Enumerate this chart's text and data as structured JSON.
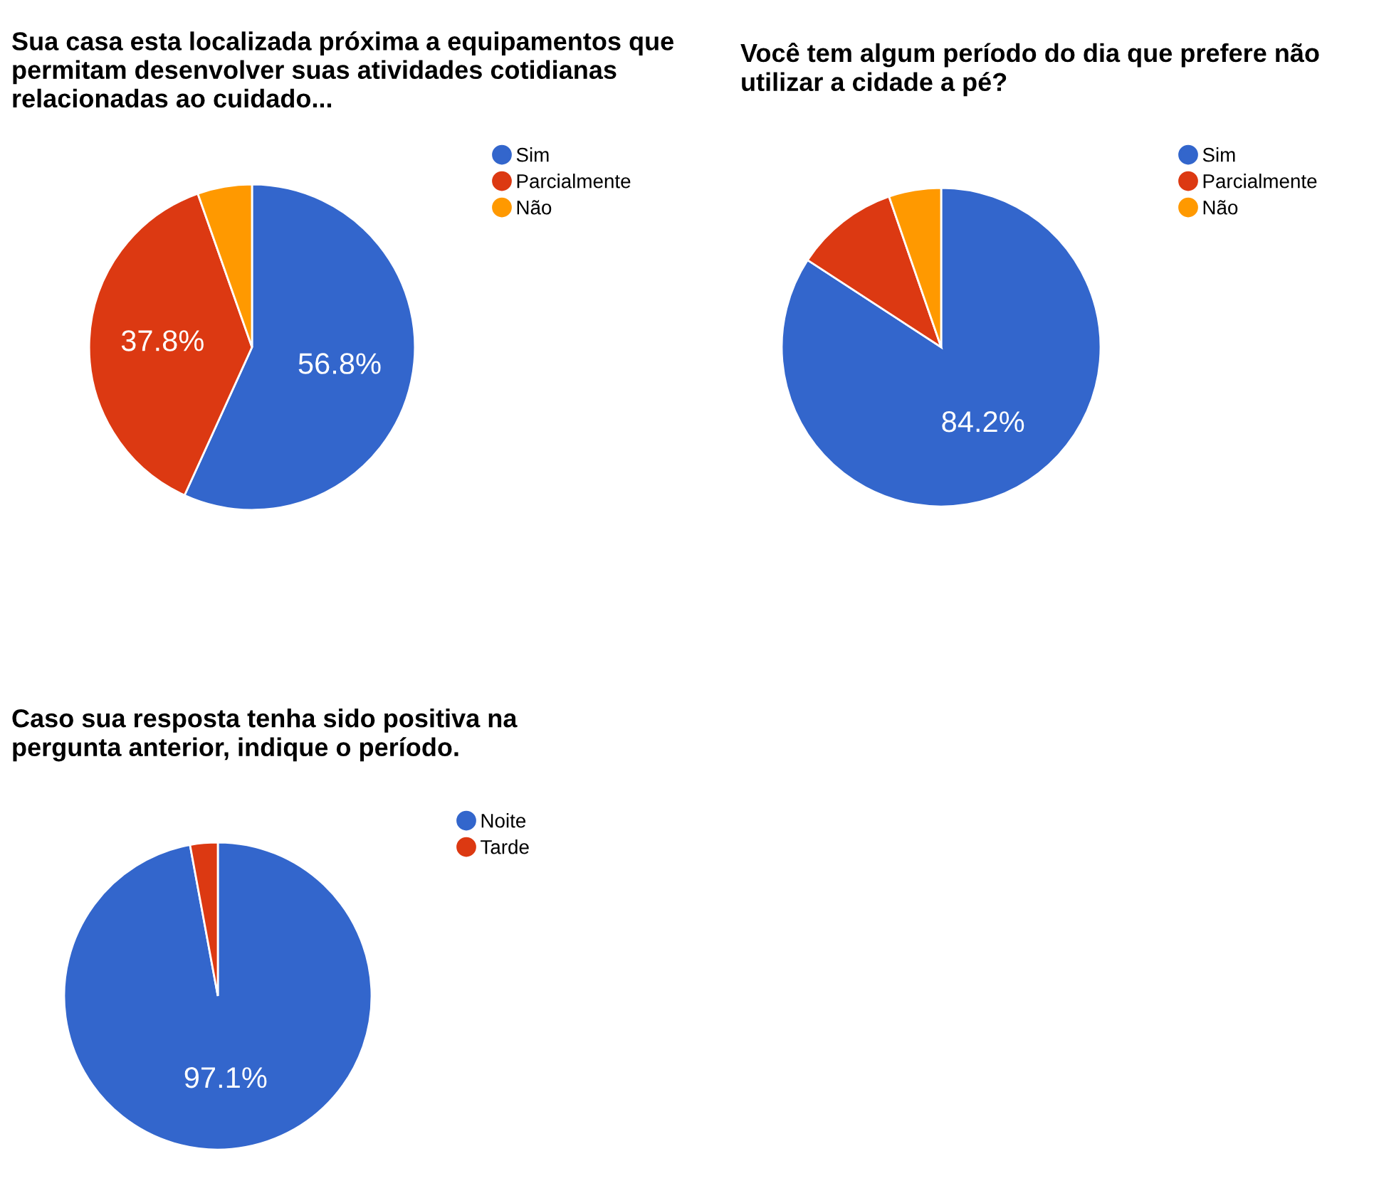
{
  "chart_data": [
    {
      "type": "pie",
      "title": "Sua casa esta localizada próxima a equipamentos que permitam desenvolver suas atividades cotidianas relacionadas ao cuidado...",
      "categories": [
        "Sim",
        "Parcialmente",
        "Não"
      ],
      "values": [
        56.8,
        37.8,
        5.4
      ],
      "colors": [
        "#3366cc",
        "#dc3912",
        "#ff9900"
      ],
      "value_labels": [
        "56.8%",
        "37.8%",
        null
      ],
      "legend": "right"
    },
    {
      "type": "pie",
      "title": "Você tem algum período do dia que prefere não utilizar a cidade a pé?",
      "categories": [
        "Sim",
        "Parcialmente",
        "Não"
      ],
      "values": [
        84.2,
        10.5,
        5.3
      ],
      "colors": [
        "#3366cc",
        "#dc3912",
        "#ff9900"
      ],
      "value_labels": [
        "84.2%",
        null,
        null
      ],
      "legend": "right"
    },
    {
      "type": "pie",
      "title": "Caso sua resposta tenha sido positiva na pergunta anterior, indique o período.",
      "categories": [
        "Noite",
        "Tarde"
      ],
      "values": [
        97.1,
        2.9
      ],
      "colors": [
        "#3366cc",
        "#dc3912"
      ],
      "value_labels": [
        "97.1%",
        null
      ],
      "legend": "right"
    }
  ]
}
